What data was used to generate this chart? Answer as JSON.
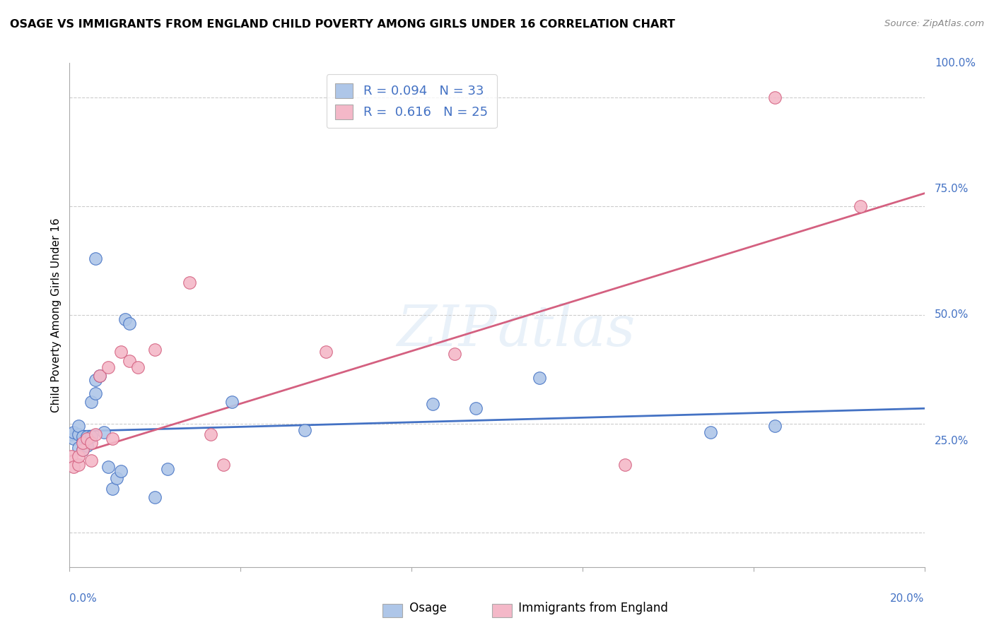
{
  "title": "OSAGE VS IMMIGRANTS FROM ENGLAND CHILD POVERTY AMONG GIRLS UNDER 16 CORRELATION CHART",
  "source": "Source: ZipAtlas.com",
  "ylabel": "Child Poverty Among Girls Under 16",
  "osage_color": "#aec6e8",
  "england_color": "#f4b8c8",
  "osage_line_color": "#4472c4",
  "england_line_color": "#d46080",
  "watermark": "ZIPatlas",
  "xlim": [
    0.0,
    0.2
  ],
  "ylim": [
    -0.08,
    1.08
  ],
  "osage_x": [
    0.0005,
    0.001,
    0.001,
    0.002,
    0.002,
    0.002,
    0.003,
    0.003,
    0.003,
    0.004,
    0.004,
    0.005,
    0.005,
    0.006,
    0.006,
    0.006,
    0.007,
    0.008,
    0.009,
    0.01,
    0.011,
    0.012,
    0.013,
    0.014,
    0.02,
    0.023,
    0.038,
    0.055,
    0.085,
    0.095,
    0.11,
    0.15,
    0.165
  ],
  "osage_y": [
    0.225,
    0.215,
    0.23,
    0.195,
    0.225,
    0.245,
    0.19,
    0.21,
    0.22,
    0.2,
    0.22,
    0.22,
    0.3,
    0.32,
    0.35,
    0.63,
    0.36,
    0.23,
    0.15,
    0.1,
    0.125,
    0.14,
    0.49,
    0.48,
    0.08,
    0.145,
    0.3,
    0.235,
    0.295,
    0.285,
    0.355,
    0.23,
    0.245
  ],
  "england_x": [
    0.0005,
    0.001,
    0.002,
    0.002,
    0.003,
    0.003,
    0.004,
    0.005,
    0.005,
    0.006,
    0.007,
    0.009,
    0.01,
    0.012,
    0.014,
    0.016,
    0.02,
    0.028,
    0.033,
    0.036,
    0.06,
    0.09,
    0.13,
    0.165,
    0.185
  ],
  "england_y": [
    0.175,
    0.15,
    0.155,
    0.175,
    0.19,
    0.205,
    0.215,
    0.205,
    0.165,
    0.225,
    0.36,
    0.38,
    0.215,
    0.415,
    0.395,
    0.38,
    0.42,
    0.575,
    0.225,
    0.155,
    0.415,
    0.41,
    0.155,
    1.0,
    0.75
  ],
  "osage_trend": [
    0.0,
    0.232,
    0.2,
    0.285
  ],
  "england_trend": [
    0.0,
    0.175,
    0.2,
    0.78
  ],
  "legend_text_1": "R = 0.094   N = 33",
  "legend_text_2": "R =  0.616   N = 25"
}
